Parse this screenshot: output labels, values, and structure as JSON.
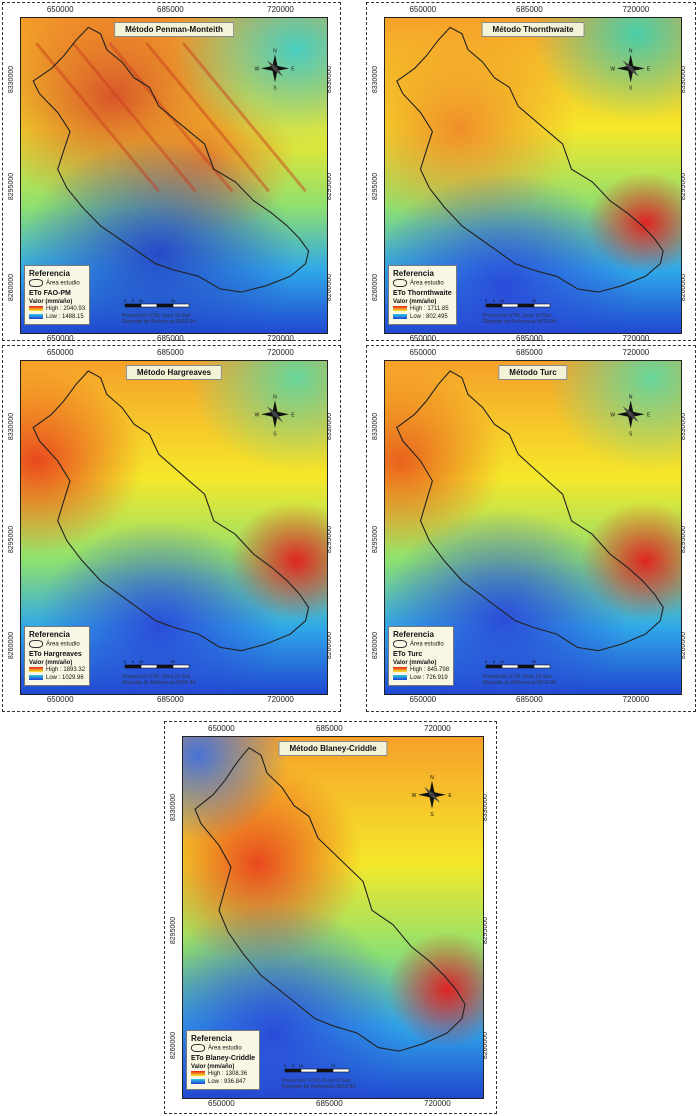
{
  "axes": {
    "x_ticks": [
      "650000",
      "685000",
      "720000"
    ],
    "y_ticks": [
      "8330000",
      "8295000",
      "8260000"
    ]
  },
  "legend_common": {
    "heading": "Referencia",
    "area_label": "Área estudio",
    "valor_label": "Valor (mm/año)",
    "high_prefix": "High : ",
    "low_prefix": "Low : "
  },
  "scale_labels": [
    "0",
    "5",
    "10",
    "20"
  ],
  "north": {
    "n": "N",
    "s": "S",
    "e": "E",
    "w": "W"
  },
  "projection_lines": [
    "Proyección UTM, Zona 19 Sud",
    "Elipsoide de Referencia WGS-84"
  ],
  "panels": [
    {
      "title": "Método Penman-Monteith",
      "eto_label": "ETo FAO-PM",
      "high": "2040.93",
      "low": "1488.15"
    },
    {
      "title": "Método Thornthwaite",
      "eto_label": "ETo Thornthwaite",
      "high": "1711.85",
      "low": "802.495"
    },
    {
      "title": "Método Hargreaves",
      "eto_label": "ETo Hargreaves",
      "high": "1893.32",
      "low": "1029.96"
    },
    {
      "title": "Método Turc",
      "eto_label": "ETo Turc",
      "high": "845.798",
      "low": "726.919"
    },
    {
      "title": "Método Blaney-Criddle",
      "eto_label": "ETo Blaney-Criddle",
      "high": "1308.36",
      "low": "936.847"
    }
  ],
  "colors": {
    "high": "#e8201c",
    "mid": "#f5ef2a",
    "low": "#2040d8"
  }
}
